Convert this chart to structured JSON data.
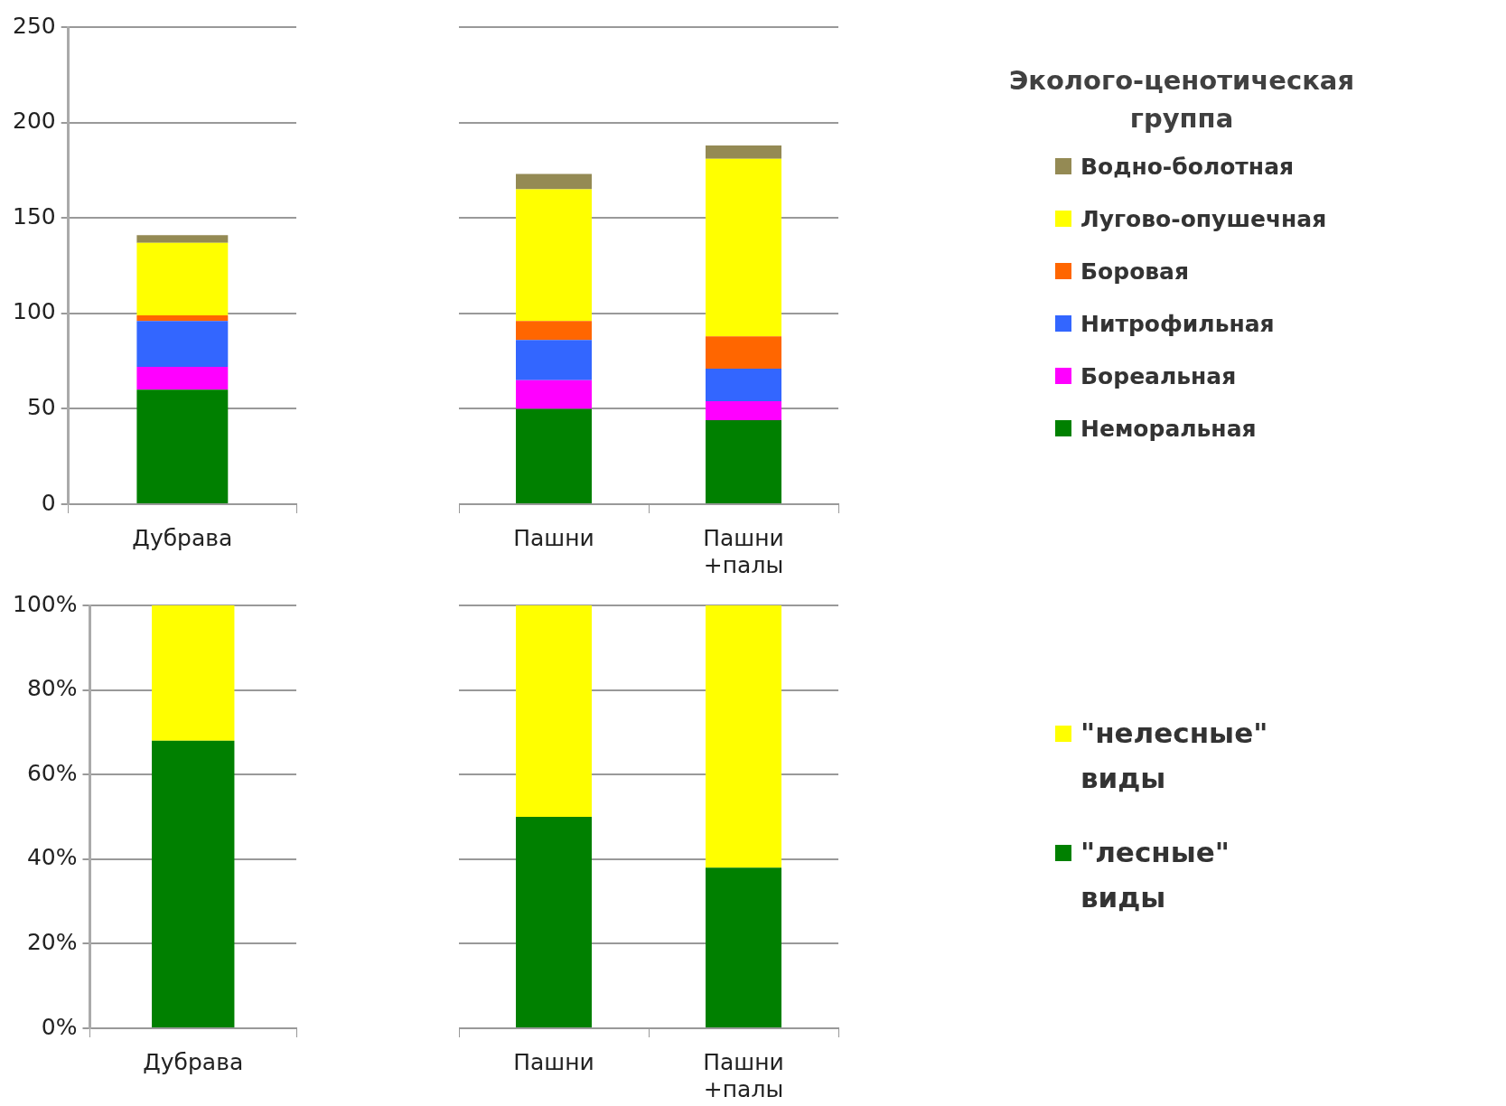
{
  "chart_data": [
    {
      "type": "bar",
      "stacked": true,
      "categories": [
        "Дубрава"
      ],
      "ylim": [
        0,
        250
      ],
      "yticks": [
        0,
        50,
        100,
        150,
        200,
        250
      ],
      "grid": "y",
      "series": [
        {
          "color": "#008000",
          "values": [
            60
          ]
        },
        {
          "color": "#ff00ff",
          "values": [
            12
          ]
        },
        {
          "color": "#3366ff",
          "values": [
            24
          ]
        },
        {
          "color": "#ff6600",
          "values": [
            3
          ]
        },
        {
          "color": "#ffff00",
          "values": [
            38
          ]
        },
        {
          "color": "#948a54",
          "values": [
            4
          ]
        }
      ]
    },
    {
      "type": "bar",
      "stacked": true,
      "categories": [
        "Пашни",
        "Пашни +палы"
      ],
      "ylim": [
        0,
        250
      ],
      "yticks": [
        0,
        50,
        100,
        150,
        200,
        250
      ],
      "grid": "y",
      "tick_labels": "x",
      "legend": "right",
      "legend_title": "Эколого-ценотическая группа",
      "series": [
        {
          "name": "Неморальная",
          "color": "#008000",
          "values": [
            50,
            44
          ]
        },
        {
          "name": "Бореальная",
          "color": "#ff00ff",
          "values": [
            15,
            10
          ]
        },
        {
          "name": "Нитрофильная",
          "color": "#3366ff",
          "values": [
            21,
            17
          ]
        },
        {
          "name": "Боровая",
          "color": "#ff6600",
          "values": [
            10,
            17
          ]
        },
        {
          "name": "Лугово-опушечная",
          "color": "#ffff00",
          "values": [
            69,
            93
          ]
        },
        {
          "name": "Водно-болотная",
          "color": "#948a54",
          "values": [
            8,
            7
          ]
        }
      ]
    },
    {
      "type": "bar",
      "stacked": true,
      "categories": [
        "Дубрава"
      ],
      "ylim": [
        0,
        100
      ],
      "yticks": [
        {
          "value": 0,
          "label": "0%"
        },
        {
          "value": 20,
          "label": "20%"
        },
        {
          "value": 40,
          "label": "40%"
        },
        {
          "value": 60,
          "label": "60%"
        },
        {
          "value": 80,
          "label": "80%"
        },
        {
          "value": 100,
          "label": "100%"
        }
      ],
      "grid": "y",
      "series": [
        {
          "color": "#008000",
          "values": [
            68
          ]
        },
        {
          "color": "#ffff00",
          "values": [
            32
          ]
        }
      ]
    },
    {
      "type": "bar",
      "stacked": true,
      "categories": [
        "Пашни",
        "Пашни +палы"
      ],
      "ylim": [
        0,
        100
      ],
      "yticks": [
        0,
        20,
        40,
        60,
        80,
        100
      ],
      "grid": "y",
      "tick_labels": "x",
      "legend": "right",
      "series": [
        {
          "name": "\"лесные\" виды",
          "color": "#008000",
          "values": [
            50,
            38
          ]
        },
        {
          "name": "\"нелесные\" виды",
          "color": "#ffff00",
          "values": [
            50,
            62
          ]
        }
      ]
    }
  ]
}
